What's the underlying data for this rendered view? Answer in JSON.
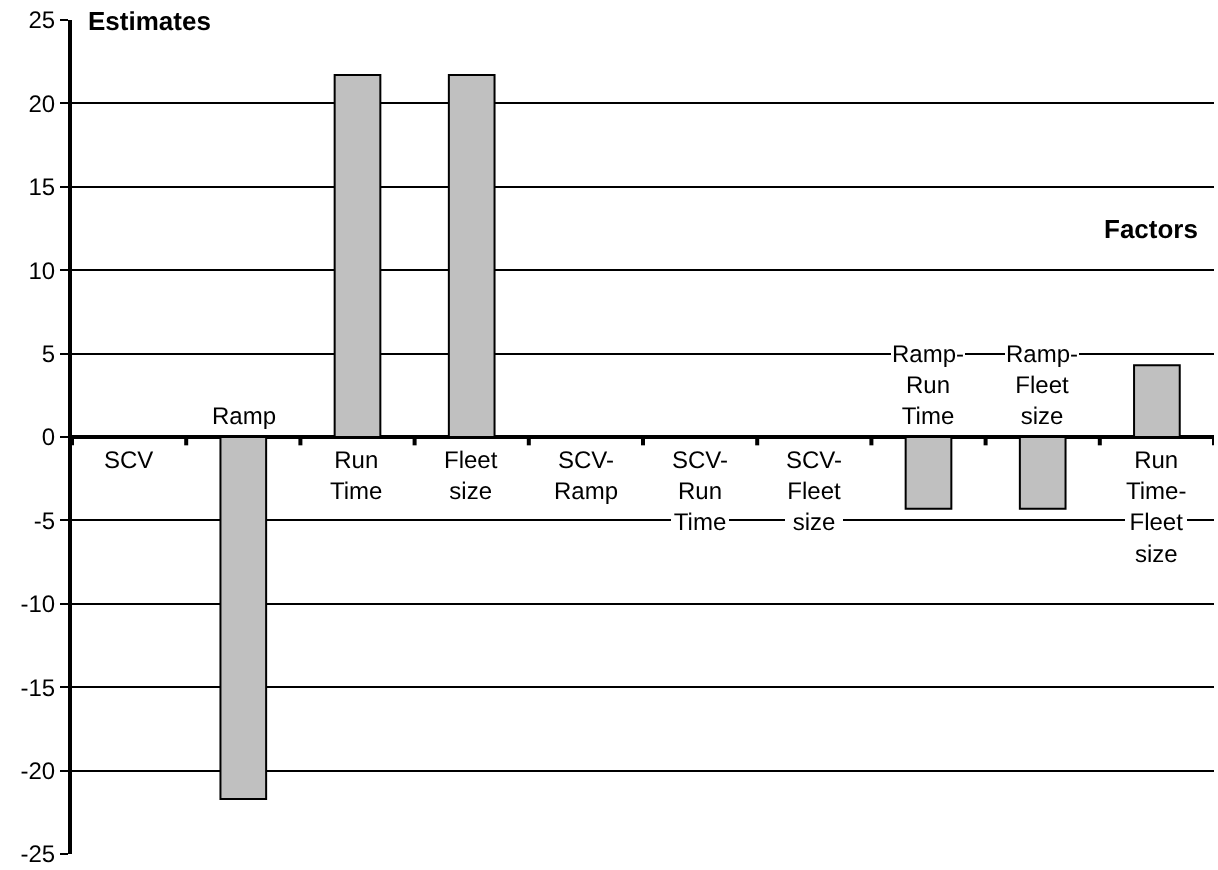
{
  "chart_data": {
    "type": "bar",
    "xlabel": "Factors",
    "ylabel": "Estimates",
    "categories": [
      "SCV",
      "Ramp",
      "Run Time",
      "Fleet size",
      "SCV-Ramp",
      "SCV-Run Time",
      "SCV-Fleet size",
      "Ramp-Run Time",
      "Ramp-Fleet size",
      "Run Time-Fleet size"
    ],
    "values": [
      0,
      -21.7,
      21.7,
      21.7,
      0,
      0,
      0,
      -4.3,
      -4.3,
      4.3
    ],
    "color": "#c0c0c0",
    "ylim": [
      -25,
      25
    ],
    "yticks": [
      -25,
      -20,
      -15,
      -10,
      -5,
      0,
      5,
      10,
      15,
      20,
      25
    ],
    "grid": "y",
    "legend": false
  }
}
